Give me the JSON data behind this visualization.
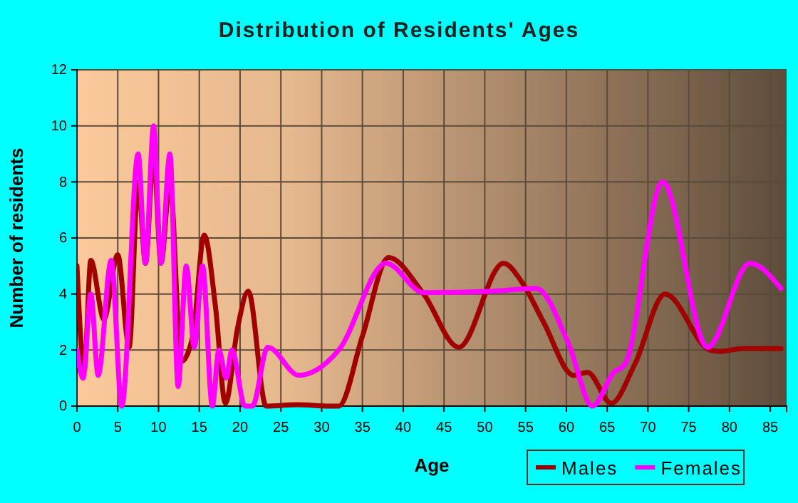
{
  "chart_data": {
    "type": "line",
    "title": "Distribution of Residents' Ages",
    "xlabel": "Age",
    "ylabel": "Number of residents",
    "xlim": [
      0,
      87
    ],
    "xticks": [
      0,
      5,
      10,
      15,
      20,
      25,
      30,
      35,
      40,
      45,
      50,
      55,
      60,
      65,
      70,
      75,
      80,
      85
    ],
    "ylim": [
      0,
      12
    ],
    "yticks": [
      0,
      2,
      4,
      6,
      8,
      10,
      12
    ],
    "grid": true,
    "legend": "bottom right",
    "series": [
      {
        "name": "Males",
        "color": "#a00000",
        "x": [
          0,
          0.9,
          1.7,
          3.3,
          5,
          6.4,
          7.5,
          8.4,
          9.4,
          10.3,
          11.4,
          12.8,
          14.2,
          15.6,
          17,
          18.2,
          19.7,
          21,
          23.2,
          27,
          31,
          32.1,
          35,
          38.2,
          42.5,
          46.8,
          52.3,
          54.6,
          57.2,
          60.9,
          62.6,
          65.5,
          68.4,
          72.1,
          77.6,
          78.8,
          81.6,
          86.3
        ],
        "values": [
          5,
          1.3,
          5.2,
          3.1,
          5.4,
          2.1,
          8,
          5.1,
          9,
          5.1,
          8,
          1.6,
          2.5,
          6.1,
          3.5,
          0.1,
          2.8,
          4.1,
          0,
          0.05,
          0,
          0,
          2.5,
          5.3,
          4,
          2.1,
          5.1,
          4.4,
          3,
          1.1,
          1.2,
          0.1,
          1.5,
          4,
          2,
          1.95,
          2.05,
          2.05
        ]
      },
      {
        "name": "Females",
        "color": "#ff00ff",
        "x": [
          0,
          0.75,
          1.7,
          2.6,
          4.2,
          5.5,
          7.5,
          8.4,
          9.4,
          10.3,
          11.4,
          12.4,
          13.4,
          14.4,
          15.4,
          16.6,
          17.4,
          18.3,
          19,
          20.6,
          21.5,
          23.4,
          27.2,
          32.1,
          37.9,
          42.5,
          51.1,
          56.3,
          60.3,
          63.2,
          65.8,
          67.2,
          71.8,
          77.3,
          82.5,
          86.3
        ],
        "values": [
          2,
          1,
          4,
          1.1,
          5.2,
          0,
          9,
          5.1,
          10,
          5.1,
          9,
          0.7,
          5,
          2.1,
          5,
          0,
          2,
          1,
          2,
          0,
          0,
          2.1,
          1.1,
          2,
          5.1,
          4.05,
          4.1,
          4.2,
          2.2,
          0,
          1.2,
          1.5,
          8,
          2.1,
          5.1,
          4.2
        ]
      }
    ]
  }
}
